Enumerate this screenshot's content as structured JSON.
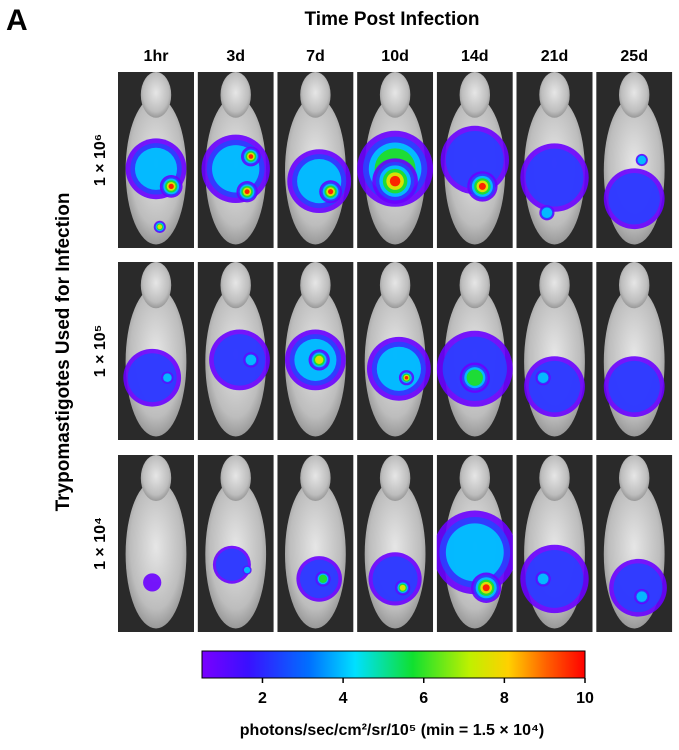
{
  "panel_label": "A",
  "title": "Time Post Infection",
  "columns": [
    "1hr",
    "3d",
    "7d",
    "10d",
    "14d",
    "21d",
    "25d"
  ],
  "row_axis_label": "Trypomastigotes Used for Infection",
  "rows": [
    "1 × 10⁶",
    "1 × 10⁵",
    "1 × 10⁴"
  ],
  "colorbar": {
    "lim": [
      0.5,
      10
    ],
    "ticks": [
      2,
      4,
      6,
      8,
      10
    ],
    "label": "photons/sec/cm²/sr/10⁵  (min = 1.5 × 10⁴)"
  }
}
